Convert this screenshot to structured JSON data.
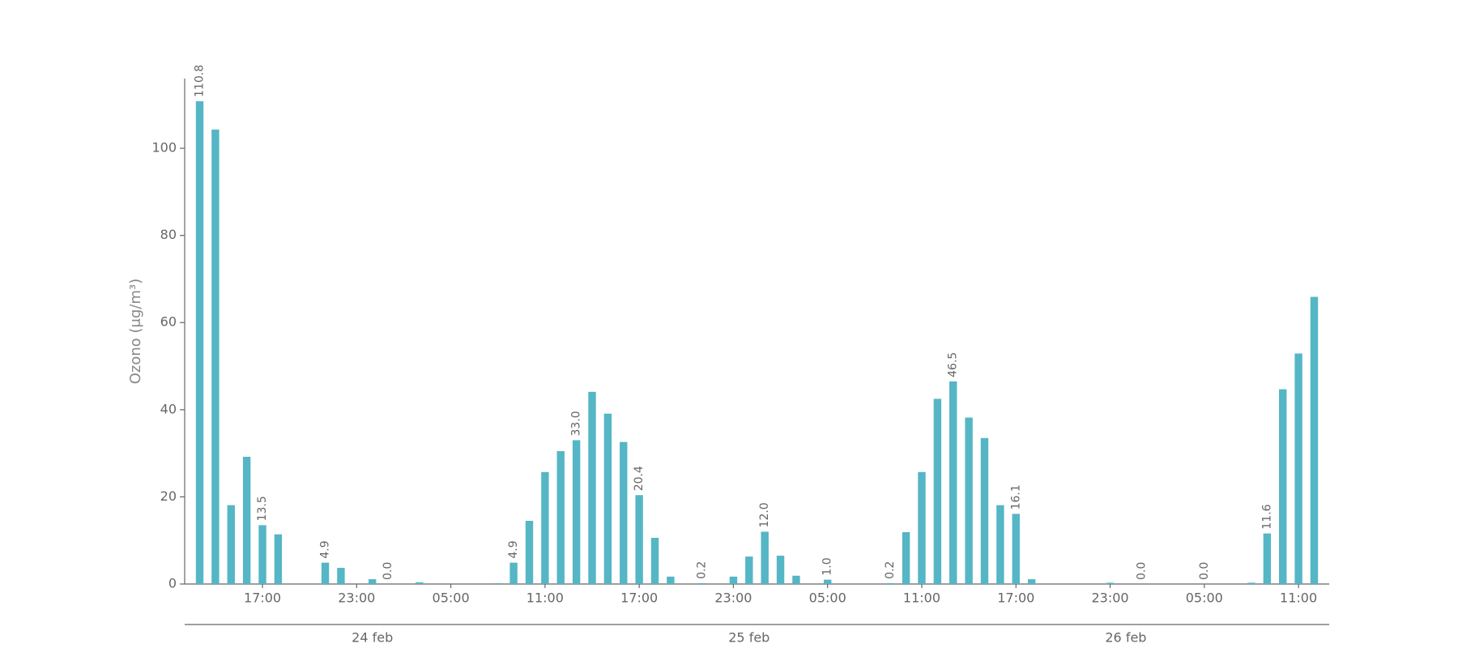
{
  "chart_data": {
    "type": "bar",
    "y_label": "Ozono (μg/m³)",
    "color": "#55b6c5",
    "ylim": [
      0,
      116
    ],
    "yticks": [
      0,
      20,
      40,
      60,
      80,
      100
    ],
    "categories": [
      null,
      null,
      null,
      null,
      "17:00",
      null,
      null,
      null,
      null,
      null,
      "23:00",
      null,
      null,
      null,
      null,
      null,
      "05:00",
      null,
      null,
      null,
      null,
      null,
      "11:00",
      null,
      null,
      null,
      null,
      null,
      "17:00",
      null,
      null,
      null,
      null,
      null,
      "23:00",
      null,
      null,
      null,
      null,
      null,
      "05:00",
      null,
      null,
      null,
      null,
      null,
      "11:00",
      null,
      null,
      null,
      null,
      null,
      "17:00",
      null,
      null,
      null,
      null,
      null,
      "23:00",
      null,
      null,
      null,
      null,
      null,
      "05:00",
      null,
      null,
      null,
      null,
      null,
      "11:00",
      null
    ],
    "date_categories": [
      null,
      null,
      null,
      null,
      null,
      null,
      null,
      null,
      null,
      null,
      null,
      "24 feb",
      null,
      null,
      null,
      null,
      null,
      null,
      null,
      null,
      null,
      null,
      null,
      null,
      null,
      null,
      null,
      null,
      null,
      null,
      null,
      null,
      null,
      null,
      null,
      "25 feb",
      null,
      null,
      null,
      null,
      null,
      null,
      null,
      null,
      null,
      null,
      null,
      null,
      null,
      null,
      null,
      null,
      null,
      null,
      null,
      null,
      null,
      null,
      null,
      "26 feb",
      null,
      null,
      null,
      null,
      null,
      null,
      null,
      null,
      null,
      null,
      null,
      null
    ],
    "values": [
      110.8,
      104.3,
      18.1,
      29.2,
      13.5,
      11.4,
      null,
      null,
      4.9,
      3.7,
      null,
      1.1,
      0.0,
      null,
      0.4,
      null,
      null,
      null,
      null,
      0.2,
      4.9,
      14.5,
      25.7,
      30.5,
      33.0,
      44.1,
      39.1,
      32.6,
      20.4,
      10.6,
      1.7,
      null,
      0.2,
      null,
      1.7,
      6.3,
      12.0,
      6.5,
      1.9,
      null,
      1.0,
      null,
      null,
      null,
      0.2,
      11.9,
      25.7,
      42.5,
      46.5,
      38.2,
      33.5,
      18.1,
      16.1,
      1.1,
      null,
      null,
      null,
      null,
      0.3,
      null,
      0.0,
      null,
      null,
      null,
      0.0,
      null,
      null,
      0.3,
      11.6,
      44.7,
      52.9,
      65.9
    ],
    "value_labels": [
      "110.8",
      null,
      null,
      null,
      "13.5",
      null,
      null,
      null,
      "4.9",
      null,
      null,
      null,
      "0.0",
      null,
      null,
      null,
      null,
      null,
      null,
      null,
      "4.9",
      null,
      null,
      null,
      "33.0",
      null,
      null,
      null,
      "20.4",
      null,
      null,
      null,
      "0.2",
      null,
      null,
      null,
      "12.0",
      null,
      null,
      null,
      "1.0",
      null,
      null,
      null,
      "0.2",
      null,
      null,
      null,
      "46.5",
      null,
      null,
      null,
      "16.1",
      null,
      null,
      null,
      null,
      null,
      null,
      null,
      "0.0",
      null,
      null,
      null,
      "0.0",
      null,
      null,
      null,
      "11.6",
      null,
      null,
      null
    ]
  }
}
